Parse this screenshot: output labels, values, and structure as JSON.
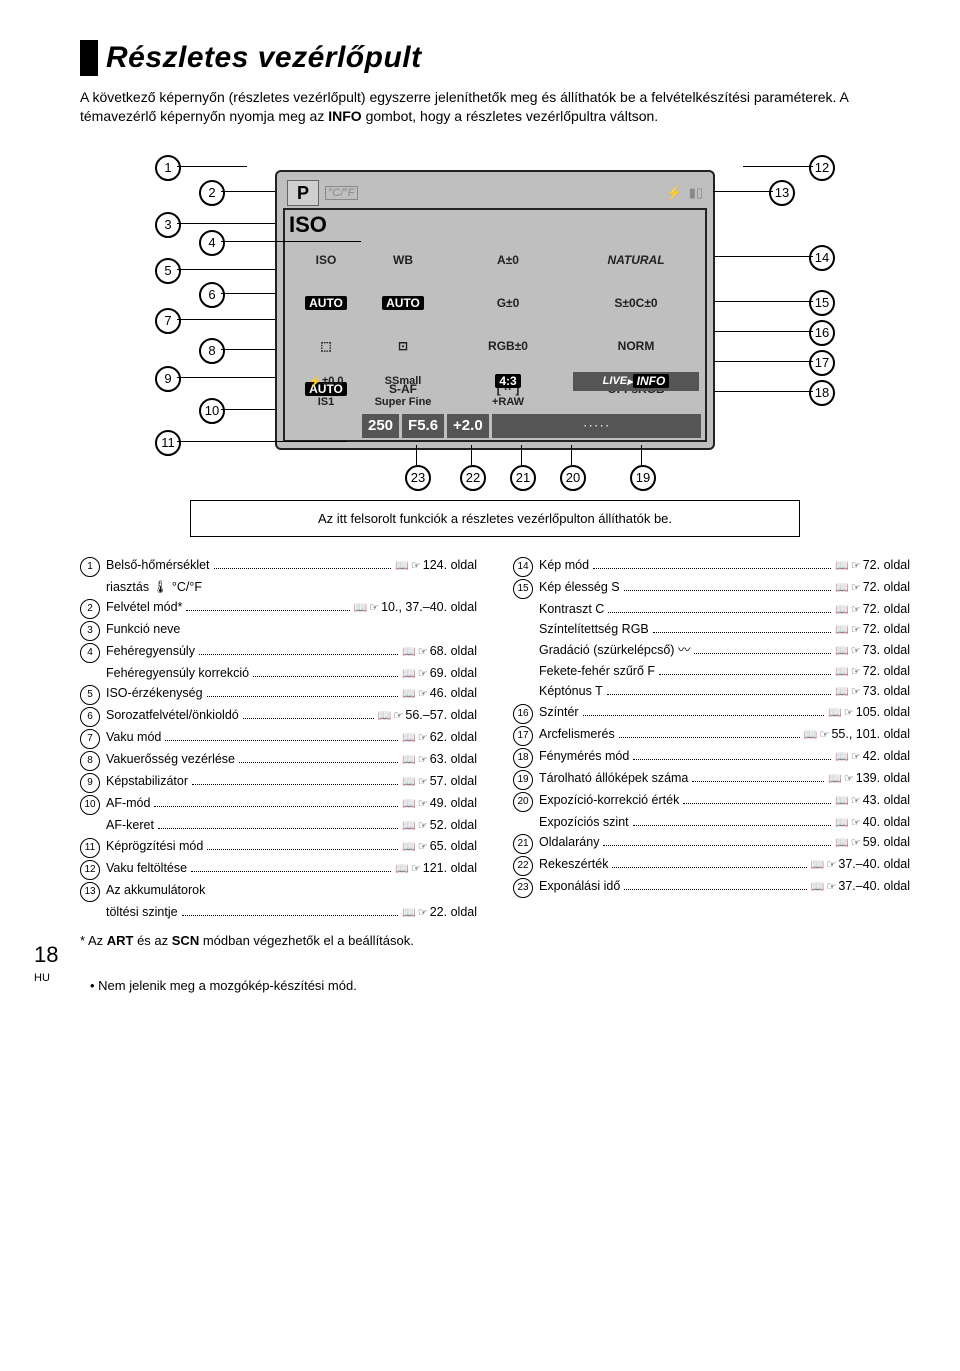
{
  "title": "Részletes vezérlőpult",
  "intro_line1": "A következő képernyőn (részletes vezérlőpult) egyszerre jeleníthetők meg és állíthatók be a felvételkészítési paraméterek. A témavezérlő képernyőn nyomja meg az ",
  "intro_bold": "INFO",
  "intro_line2": " gombot, hogy a részletes vezérlőpultra váltson.",
  "caption": "Az itt felsorolt funkciók a részletes vezérlőpulton állíthatók be.",
  "lcd": {
    "P": "P",
    "cpf": "°C/°F",
    "ISO_big": "ISO",
    "ISO_label": "ISO",
    "AUTO1": "AUTO",
    "WB": "WB",
    "AUTO2": "AUTO",
    "A0": "A±0",
    "G0": "G±0",
    "NATURAL": "NATURAL",
    "S0": "S±0",
    "C0": "C±0",
    "RGB0": "RGB±0",
    "NORM": "NORM",
    "AUTO3": "AUTO",
    "SAF": "S-AF",
    "OFF": "OFF",
    "SRGB": "sRGB",
    "pm00": "±0.0",
    "Small": "Small",
    "ratio": "4:3",
    "LIVE": "LIVE",
    "INFO": "INFO",
    "IS1": "IS1",
    "SuperFine": "Super Fine",
    "RAW": "+RAW",
    "s250": "250",
    "F56": "F5.6",
    "p20": "+2.0"
  },
  "callouts": {
    "c1": "1",
    "c2": "2",
    "c3": "3",
    "c4": "4",
    "c5": "5",
    "c6": "6",
    "c7": "7",
    "c8": "8",
    "c9": "9",
    "c10": "10",
    "c11": "11",
    "c12": "12",
    "c13": "13",
    "c14": "14",
    "c15": "15",
    "c16": "16",
    "c17": "17",
    "c18": "18",
    "c19": "19",
    "c20": "20",
    "c21": "21",
    "c22": "22",
    "c23": "23"
  },
  "left_items": [
    {
      "n": "1",
      "label": "Belső-hőmérséklet",
      "page": "124. oldal"
    },
    {
      "n": "",
      "label": "riasztás 🌡 °C/°F",
      "page": "",
      "sub": true,
      "nodots": true
    },
    {
      "n": "2",
      "label": "Felvétel mód*",
      "page": "10., 37.–40. oldal"
    },
    {
      "n": "3",
      "label": "Funkció neve",
      "page": "",
      "nodots": true
    },
    {
      "n": "4",
      "label": "Fehéregyensúly",
      "page": "68. oldal"
    },
    {
      "n": "",
      "label": "Fehéregyensúly korrekció",
      "page": "69. oldal",
      "sub": true
    },
    {
      "n": "5",
      "label": "ISO-érzékenység",
      "page": "46. oldal"
    },
    {
      "n": "6",
      "label": "Sorozatfelvétel/önkioldó",
      "page": "56.–57. oldal"
    },
    {
      "n": "7",
      "label": "Vaku mód",
      "page": "62. oldal"
    },
    {
      "n": "8",
      "label": "Vakuerősség vezérlése",
      "page": "63. oldal"
    },
    {
      "n": "9",
      "label": "Képstabilizátor",
      "page": "57. oldal"
    },
    {
      "n": "10",
      "label": "AF-mód",
      "page": "49. oldal"
    },
    {
      "n": "",
      "label": "AF-keret",
      "page": "52. oldal",
      "sub": true
    },
    {
      "n": "11",
      "label": "Képrögzítési mód",
      "page": "65. oldal"
    },
    {
      "n": "12",
      "label": "Vaku feltöltése",
      "page": "121. oldal"
    },
    {
      "n": "13",
      "label": "Az akkumulátorok",
      "page": "",
      "nodots": true
    },
    {
      "n": "",
      "label": "töltési szintje",
      "page": "22. oldal",
      "sub": true
    }
  ],
  "right_items": [
    {
      "n": "14",
      "label": "Kép mód",
      "page": "72. oldal"
    },
    {
      "n": "15",
      "label": "Kép élesség S",
      "page": "72. oldal"
    },
    {
      "n": "",
      "label": "Kontraszt C",
      "page": "72. oldal",
      "sub": true
    },
    {
      "n": "",
      "label": "Színtelítettség RGB",
      "page": "72. oldal",
      "sub": true
    },
    {
      "n": "",
      "label": "Gradáció (szürkelépcső) 〰",
      "page": "73. oldal",
      "sub": true
    },
    {
      "n": "",
      "label": "Fekete-fehér szűrő F",
      "page": "72. oldal",
      "sub": true
    },
    {
      "n": "",
      "label": "Képtónus T",
      "page": "73. oldal",
      "sub": true
    },
    {
      "n": "16",
      "label": "Színtér",
      "page": "105. oldal"
    },
    {
      "n": "17",
      "label": "Arcfelismerés",
      "page": "55., 101. oldal"
    },
    {
      "n": "18",
      "label": "Fénymérés mód",
      "page": "42. oldal"
    },
    {
      "n": "19",
      "label": "Tárolható állóképek száma",
      "page": "139. oldal"
    },
    {
      "n": "20",
      "label": "Expozíció-korrekció érték",
      "page": "43. oldal"
    },
    {
      "n": "",
      "label": "Expozíciós szint",
      "page": "40. oldal",
      "sub": true
    },
    {
      "n": "21",
      "label": "Oldalarány",
      "page": "59. oldal"
    },
    {
      "n": "22",
      "label": "Rekeszérték",
      "page": "37.–40. oldal"
    },
    {
      "n": "23",
      "label": "Exponálási idő",
      "page": "37.–40. oldal"
    }
  ],
  "footnote_prefix": "* Az ",
  "footnote_b1": "ART",
  "footnote_mid": " és az ",
  "footnote_b2": "SCN",
  "footnote_suffix": " módban végezhetők el a beállítások.",
  "note": "Nem jelenik meg a mozgókép-készítési mód.",
  "page_number": "18",
  "page_lang": "HU"
}
